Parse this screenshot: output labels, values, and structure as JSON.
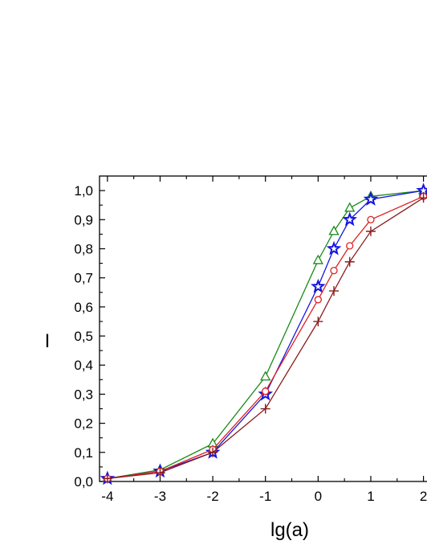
{
  "chart_data": {
    "type": "line",
    "xlabel": "lg(a)",
    "ylabel": "I",
    "xlim": [
      -4.15,
      2.25
    ],
    "ylim": [
      0,
      1.05
    ],
    "x_tick_labels": [
      "-4",
      "-3",
      "-2",
      "-1",
      "0",
      "1",
      "2"
    ],
    "y_tick_labels": [
      "0,0",
      "0,1",
      "0,2",
      "0,3",
      "0,4",
      "0,5",
      "0,6",
      "0,7",
      "0,8",
      "0,9",
      "1,0"
    ],
    "grid": false,
    "series": [
      {
        "marker": "triangle",
        "color": "#1a8a1a",
        "x": [
          -4,
          -3,
          -2,
          -1,
          0,
          0.3,
          0.6,
          1,
          2
        ],
        "y": [
          0.01,
          0.04,
          0.13,
          0.36,
          0.76,
          0.86,
          0.94,
          0.98,
          1.0
        ]
      },
      {
        "marker": "star",
        "color": "#1515e0",
        "x": [
          -4,
          -3,
          -2,
          -1,
          0,
          0.3,
          0.6,
          1,
          2
        ],
        "y": [
          0.01,
          0.035,
          0.1,
          0.3,
          0.67,
          0.8,
          0.9,
          0.97,
          1.0
        ]
      },
      {
        "marker": "circle",
        "color": "#e02020",
        "x": [
          -4,
          -3,
          -2,
          -1,
          0,
          0.3,
          0.6,
          1,
          2
        ],
        "y": [
          0.01,
          0.035,
          0.11,
          0.31,
          0.625,
          0.725,
          0.81,
          0.9,
          0.98
        ]
      },
      {
        "marker": "plus",
        "color": "#8b1a1a",
        "x": [
          -4,
          -3,
          -2,
          -1,
          0,
          0.3,
          0.6,
          1,
          2
        ],
        "y": [
          0.01,
          0.03,
          0.1,
          0.25,
          0.55,
          0.655,
          0.755,
          0.86,
          0.975
        ]
      }
    ]
  }
}
